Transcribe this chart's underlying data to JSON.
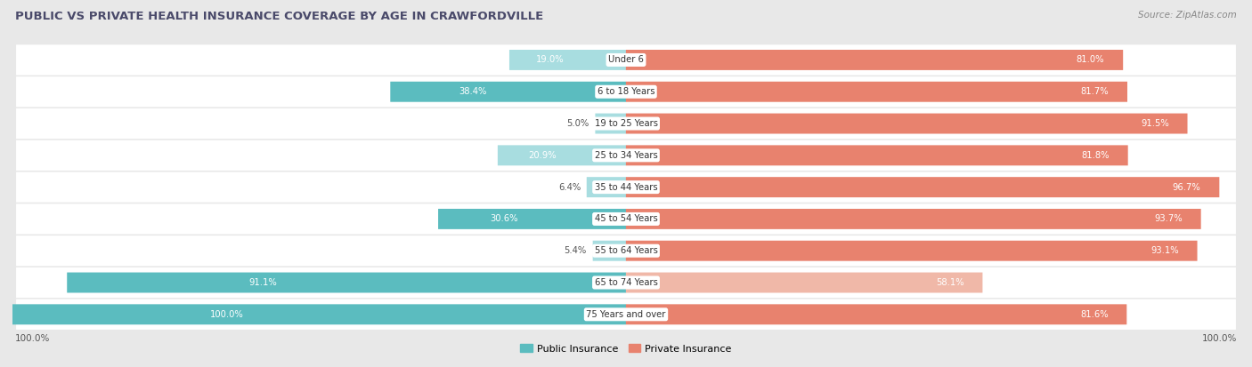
{
  "title": "PUBLIC VS PRIVATE HEALTH INSURANCE COVERAGE BY AGE IN CRAWFORDVILLE",
  "source": "Source: ZipAtlas.com",
  "categories": [
    "Under 6",
    "6 to 18 Years",
    "19 to 25 Years",
    "25 to 34 Years",
    "35 to 44 Years",
    "45 to 54 Years",
    "55 to 64 Years",
    "65 to 74 Years",
    "75 Years and over"
  ],
  "public_values": [
    19.0,
    38.4,
    5.0,
    20.9,
    6.4,
    30.6,
    5.4,
    91.1,
    100.0
  ],
  "private_values": [
    81.0,
    81.7,
    91.5,
    81.8,
    96.7,
    93.7,
    93.1,
    58.1,
    81.6
  ],
  "public_color": "#5bbcbf",
  "public_color_light": "#a8dde0",
  "private_color": "#e8826e",
  "private_color_light": "#f0b8a8",
  "bg_color": "#e8e8e8",
  "row_bg_color": "#ffffff",
  "title_color": "#4a4a6a",
  "source_color": "#888888",
  "label_dark": "#555555",
  "label_white": "#ffffff",
  "axis_label_color": "#555555",
  "public_threshold": 25,
  "private_threshold": 65,
  "legend_labels": [
    "Public Insurance",
    "Private Insurance"
  ]
}
